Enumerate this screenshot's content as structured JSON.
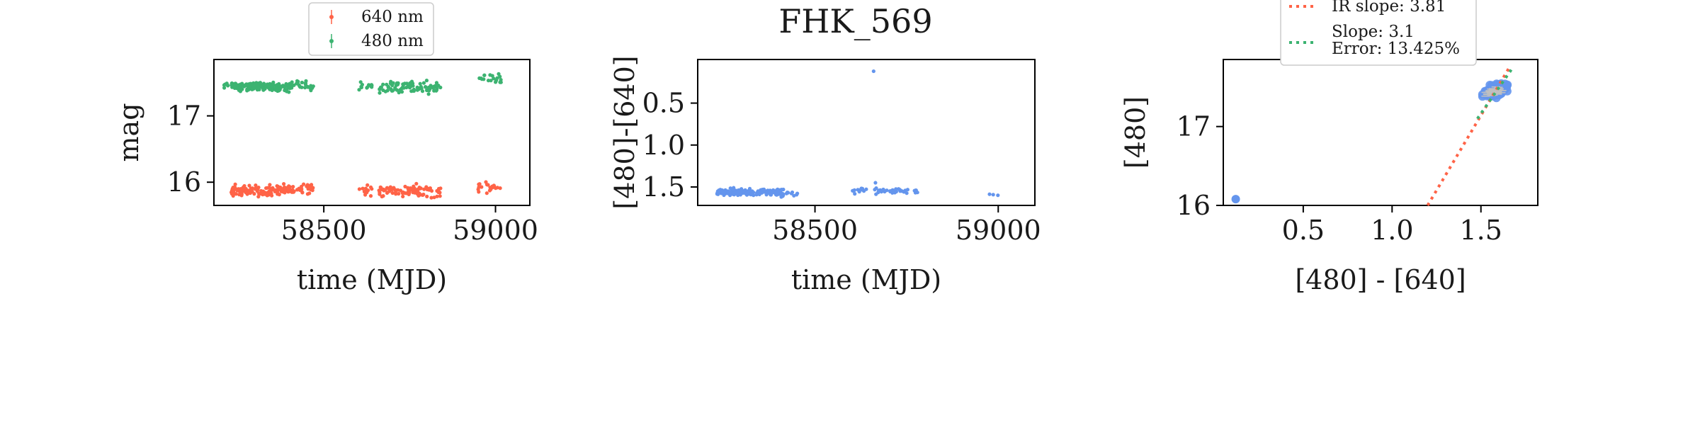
{
  "colors": {
    "red": "#ff6347",
    "green": "#3cb371",
    "blue": "#6495ed",
    "gray": "#c0c0c0"
  },
  "chart_data": [
    {
      "type": "scatter",
      "title": "",
      "xlabel": "time (MJD)",
      "ylabel": "mag",
      "xlim": [
        58180,
        59100
      ],
      "ylim": [
        17.85,
        15.65
      ],
      "y_inverted": true,
      "xticks": [
        58500,
        59000
      ],
      "yticks": [
        16,
        17
      ],
      "legend": {
        "placement": "top-center (above axes)",
        "entries": [
          "640 nm",
          "480 nm"
        ]
      },
      "series": [
        {
          "name": "640 nm",
          "color": "#ff6347",
          "clusters": [
            {
              "x_range": [
                58230,
                58415
              ],
              "y_center": 15.88,
              "y_spread": 0.12,
              "count": 150
            },
            {
              "x_range": [
                58420,
                58470
              ],
              "y_center": 15.9,
              "y_spread": 0.12,
              "count": 22
            },
            {
              "x_range": [
                58600,
                58640
              ],
              "y_center": 15.88,
              "y_spread": 0.12,
              "count": 12
            },
            {
              "x_range": [
                58660,
                58840
              ],
              "y_center": 15.87,
              "y_spread": 0.14,
              "count": 90
            },
            {
              "x_range": [
                58945,
                59020
              ],
              "y_center": 15.93,
              "y_spread": 0.12,
              "count": 20
            }
          ]
        },
        {
          "name": "480 nm",
          "color": "#3cb371",
          "clusters": [
            {
              "x_range": [
                58200,
                58230
              ],
              "y_center": 17.47,
              "y_spread": 0.06,
              "count": 6
            },
            {
              "x_range": [
                58230,
                58415
              ],
              "y_center": 17.44,
              "y_spread": 0.09,
              "count": 150
            },
            {
              "x_range": [
                58420,
                58470
              ],
              "y_center": 17.45,
              "y_spread": 0.1,
              "count": 22
            },
            {
              "x_range": [
                58600,
                58640
              ],
              "y_center": 17.45,
              "y_spread": 0.1,
              "count": 12
            },
            {
              "x_range": [
                58660,
                58840
              ],
              "y_center": 17.43,
              "y_spread": 0.12,
              "count": 90
            },
            {
              "x_range": [
                58945,
                59020
              ],
              "y_center": 17.55,
              "y_spread": 0.12,
              "count": 20
            }
          ]
        }
      ]
    },
    {
      "type": "scatter",
      "title": "FHK_569",
      "xlabel": "time (MJD)",
      "ylabel": "[480]-[640]",
      "xlim": [
        58180,
        59100
      ],
      "ylim": [
        -0.02,
        1.72
      ],
      "y_inverted": true,
      "xticks": [
        58500,
        59000
      ],
      "yticks": [
        0.5,
        1.0,
        1.5
      ],
      "series": [
        {
          "name": "",
          "color": "#6495ed",
          "clusters": [
            {
              "x_range": [
                58230,
                58415
              ],
              "y_center": 1.56,
              "y_spread": 0.07,
              "count": 150
            },
            {
              "x_range": [
                58420,
                58470
              ],
              "y_center": 1.58,
              "y_spread": 0.06,
              "count": 8
            },
            {
              "x_range": [
                58600,
                58640
              ],
              "y_center": 1.55,
              "y_spread": 0.07,
              "count": 12
            },
            {
              "x_range": [
                58660,
                58780
              ],
              "y_center": 1.55,
              "y_spread": 0.06,
              "count": 40
            },
            {
              "x_range": [
                58960,
                59010
              ],
              "y_center": 1.6,
              "y_spread": 0.04,
              "count": 3
            }
          ],
          "outliers": [
            {
              "x": 58660,
              "y": 0.12
            },
            {
              "x": 58665,
              "y": 1.45
            }
          ]
        }
      ]
    },
    {
      "type": "scatter",
      "title": "",
      "xlabel": "[480] - [640]",
      "ylabel": "[480]",
      "xlim": [
        0.05,
        1.82
      ],
      "ylim": [
        17.85,
        16.0
      ],
      "y_inverted": true,
      "xticks": [
        0.5,
        1.0,
        1.5
      ],
      "yticks": [
        16,
        17
      ],
      "legend": {
        "placement": "top-center (partly above axes)",
        "entries": [
          "IR slope: 3.81",
          "Slope: 3.1\nError: 13.425%"
        ]
      },
      "series": [
        {
          "name": "",
          "color": "#6495ed",
          "clusters": [
            {
              "x_center": 1.58,
              "x_spread": 0.09,
              "y_center": 17.45,
              "y_spread": 0.1,
              "count": 140
            }
          ],
          "outliers": [
            {
              "x": 0.12,
              "y": 16.08
            }
          ]
        }
      ],
      "lines": [
        {
          "name": "IR slope: 3.81",
          "color": "#ff6347",
          "style": "dotted",
          "slope": 3.81,
          "points": [
            [
              1.2,
              16.0
            ],
            [
              1.66,
              17.75
            ]
          ]
        },
        {
          "name": "Slope: 3.1",
          "color": "#3cb371",
          "style": "dotted",
          "slope": 3.1,
          "points": [
            [
              1.48,
              17.1
            ],
            [
              1.68,
              17.75
            ]
          ]
        }
      ]
    }
  ]
}
